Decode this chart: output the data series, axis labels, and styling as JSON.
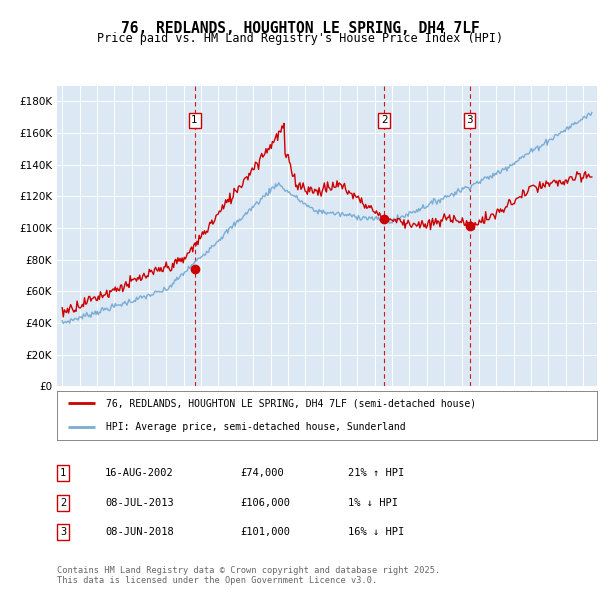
{
  "title": "76, REDLANDS, HOUGHTON LE SPRING, DH4 7LF",
  "subtitle": "Price paid vs. HM Land Registry's House Price Index (HPI)",
  "ylim": [
    0,
    190000
  ],
  "yticks": [
    0,
    20000,
    40000,
    60000,
    80000,
    100000,
    120000,
    140000,
    160000,
    180000
  ],
  "plot_bg": "#dde8f5",
  "red_color": "#cc0000",
  "blue_color": "#7aadd4",
  "legend_entries": [
    "76, REDLANDS, HOUGHTON LE SPRING, DH4 7LF (semi-detached house)",
    "HPI: Average price, semi-detached house, Sunderland"
  ],
  "transactions": [
    {
      "num": 1,
      "date": "16-AUG-2002",
      "price": 74000,
      "price_str": "£74,000",
      "rel": "21% ↑ HPI"
    },
    {
      "num": 2,
      "date": "08-JUL-2013",
      "price": 106000,
      "price_str": "£106,000",
      "rel": "1% ↓ HPI"
    },
    {
      "num": 3,
      "date": "08-JUN-2018",
      "price": 101000,
      "price_str": "£101,000",
      "rel": "16% ↓ HPI"
    }
  ],
  "sale_years": [
    2002.625,
    2013.542,
    2018.458
  ],
  "footer": "Contains HM Land Registry data © Crown copyright and database right 2025.\nThis data is licensed under the Open Government Licence v3.0.",
  "x_start_year": 1995,
  "x_end_year": 2025
}
